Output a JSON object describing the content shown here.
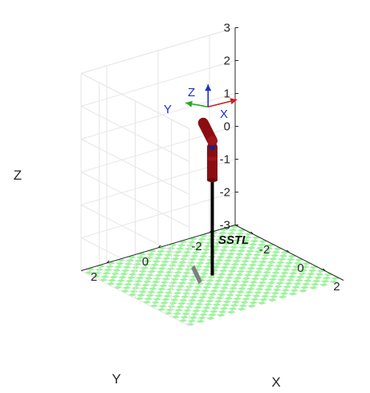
{
  "chart_data": {
    "type": "3d-scene",
    "grid": true,
    "xlabel": "X",
    "ylabel": "Y",
    "zlabel": "Z",
    "xlim": [
      -3,
      3
    ],
    "ylim": [
      -3,
      3
    ],
    "zlim": [
      -3,
      3
    ],
    "x_ticks": [
      "-2",
      "0",
      "2"
    ],
    "y_ticks": [
      "-2",
      "0",
      "2"
    ],
    "z_ticks": [
      "-3",
      "-2",
      "-1",
      "0",
      "1",
      "2",
      "3"
    ],
    "annotation": "SSTL",
    "frame_axes": [
      {
        "label": "X",
        "color": "#cc2020"
      },
      {
        "label": "Y",
        "color": "#22aa22"
      },
      {
        "label": "Z",
        "color": "#2030c0"
      }
    ],
    "floor": {
      "z": -3,
      "color_a": "#9ff29f",
      "color_b": "#ffffff"
    },
    "robot": {
      "base": [
        0,
        0,
        -3
      ],
      "joints": [
        [
          0,
          0,
          -3
        ],
        [
          0,
          0,
          0
        ],
        [
          0,
          0,
          0.9
        ],
        [
          0,
          0,
          1.1
        ],
        [
          -0.5,
          0,
          1.5
        ]
      ],
      "link_colors": [
        "#000000",
        "#8b0d12",
        "#1a237e",
        "#8b0d12"
      ],
      "frame_origin": [
        -0.5,
        0,
        1.5
      ]
    }
  }
}
